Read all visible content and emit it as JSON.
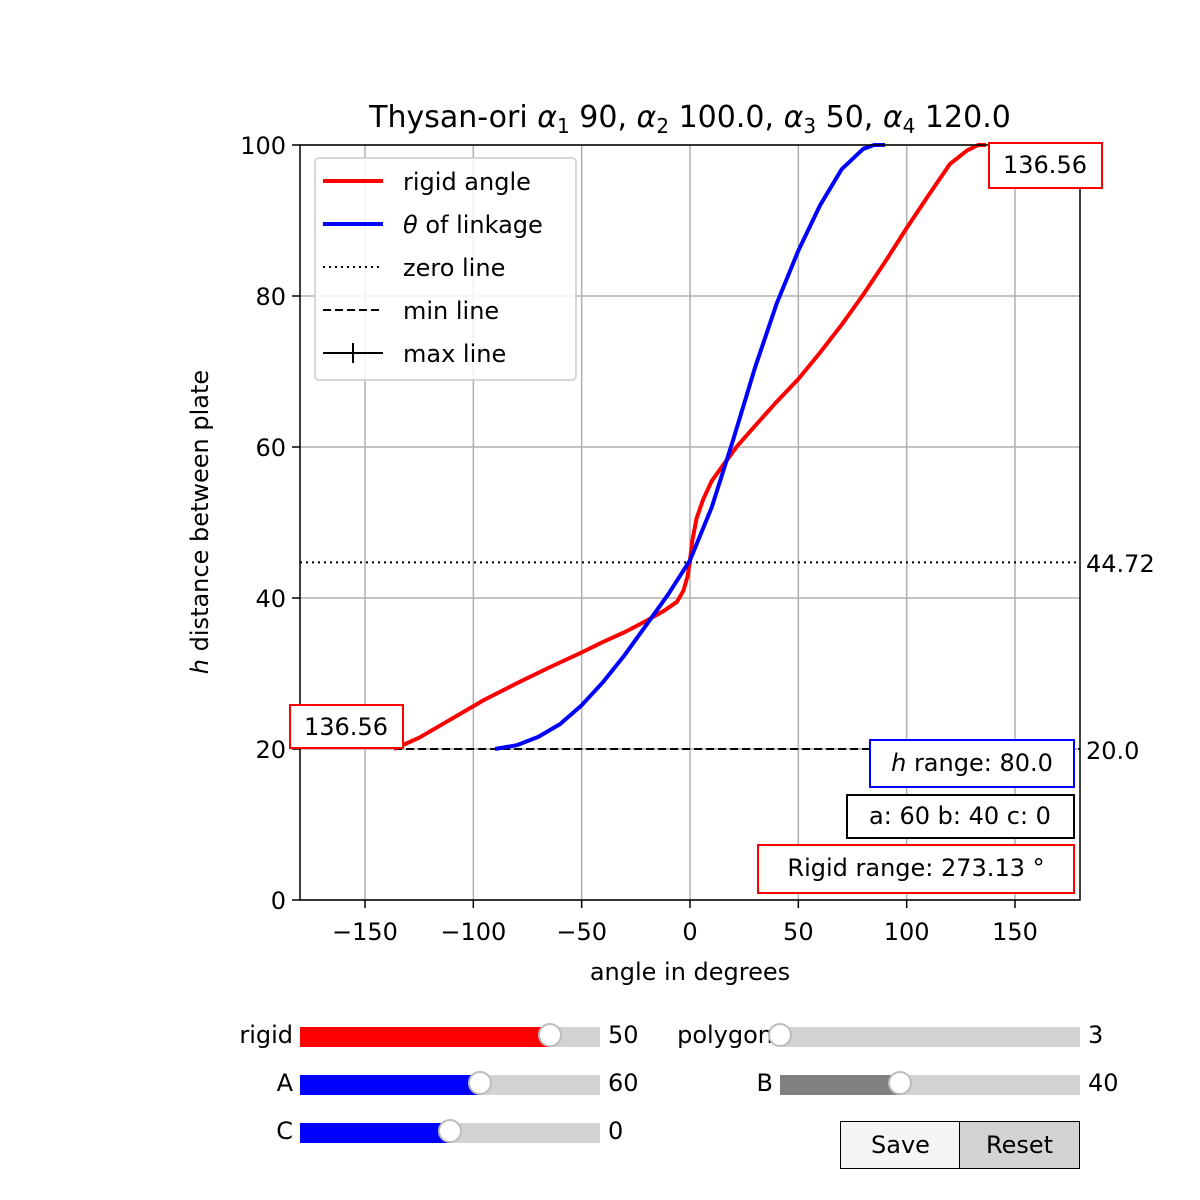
{
  "chart_data": {
    "type": "line",
    "title": "Thysan-ori α₁ 90, α₂ 100.0, α₃ 50, α₄ 120.0",
    "xlabel": "angle in degrees",
    "ylabel": "h distance between plate",
    "xlim": [
      -180,
      180
    ],
    "ylim": [
      0,
      100
    ],
    "xticks": [
      -150,
      -100,
      -50,
      0,
      50,
      100,
      150
    ],
    "yticks": [
      0,
      20,
      40,
      60,
      80,
      100
    ],
    "grid": true,
    "legend_position": "top-left",
    "series": [
      {
        "name": "rigid angle",
        "color": "#ff0000",
        "x": [
          -136.56,
          -125,
          -110,
          -95,
          -80,
          -65,
          -50,
          -40,
          -30,
          -20,
          -12,
          -6,
          -3,
          -1,
          0,
          1,
          3,
          6,
          10,
          15,
          22,
          30,
          40,
          50,
          60,
          70,
          80,
          90,
          100,
          110,
          120,
          128,
          133,
          136.56
        ],
        "y": [
          20,
          21.5,
          24,
          26.5,
          28.7,
          30.8,
          32.8,
          34.2,
          35.5,
          37,
          38.3,
          39.5,
          41,
          43,
          45,
          47.5,
          50.5,
          53,
          55.5,
          57.5,
          60.2,
          62.8,
          66,
          69,
          72.5,
          76.2,
          80.2,
          84.5,
          89,
          93.3,
          97.5,
          99.3,
          100,
          100
        ]
      },
      {
        "name": "θ of linkage",
        "color": "#0000ff",
        "x": [
          -90,
          -80,
          -70,
          -60,
          -50,
          -40,
          -30,
          -20,
          -10,
          0,
          10,
          20,
          30,
          40,
          50,
          60,
          70,
          80,
          85,
          90
        ],
        "y": [
          20,
          20.5,
          21.6,
          23.3,
          25.8,
          28.9,
          32.5,
          36.5,
          40.5,
          45,
          52,
          61,
          70.5,
          79,
          86,
          92,
          96.8,
          99.5,
          100,
          100
        ]
      }
    ],
    "legend": [
      {
        "label": "rigid angle",
        "style": "solid",
        "color": "#ff0000"
      },
      {
        "label": "θ of linkage",
        "style": "solid",
        "color": "#0000ff"
      },
      {
        "label": "zero line",
        "style": "dotted",
        "color": "#000000"
      },
      {
        "label": "min line",
        "style": "dashed",
        "color": "#000000"
      },
      {
        "label": "max line",
        "style": "tick",
        "color": "#000000"
      }
    ],
    "zero_line": {
      "y": 44.72,
      "label": "44.72"
    },
    "min_line": {
      "y": 20,
      "x_start": -136.56,
      "label": "20.0"
    },
    "annotations": {
      "rigid_max_label": "136.56",
      "rigid_min_label": "136.56",
      "h_range": "h range: 80.0",
      "abc": "a: 60 b: 40 c: 0",
      "rigid_range": "Rigid range: 273.13 °"
    }
  },
  "controls": {
    "sliders": [
      {
        "id": "rigid",
        "label": "rigid",
        "value": "50",
        "fraction": 0.833,
        "color": "#ff0000"
      },
      {
        "id": "a",
        "label": "A",
        "value": "60",
        "fraction": 0.6,
        "color": "#0000ff"
      },
      {
        "id": "c",
        "label": "C",
        "value": "0",
        "fraction": 0.5,
        "color": "#0000ff"
      },
      {
        "id": "polygon",
        "label": "polygon",
        "value": "3",
        "fraction": 0.0,
        "color": "#808080"
      },
      {
        "id": "b",
        "label": "B",
        "value": "40",
        "fraction": 0.4,
        "color": "#808080"
      }
    ],
    "buttons": [
      {
        "id": "save",
        "label": "Save",
        "bg": "#f5f5f5"
      },
      {
        "id": "reset",
        "label": "Reset",
        "bg": "#d3d3d3"
      }
    ]
  }
}
